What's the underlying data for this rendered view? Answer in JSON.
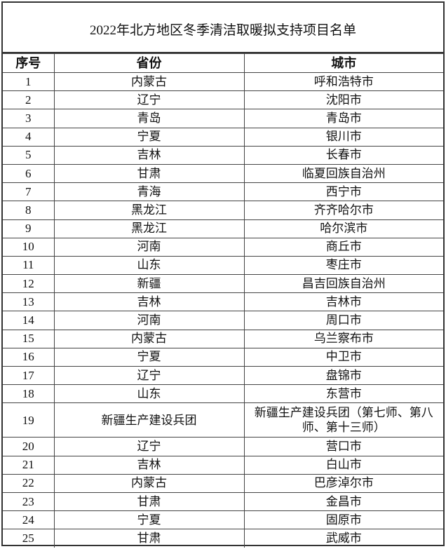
{
  "title": "2022年北方地区冬季清洁取暖拟支持项目名单",
  "headers": {
    "index": "序号",
    "province": "省份",
    "city": "城市"
  },
  "rows": [
    {
      "index": "1",
      "province": "内蒙古",
      "city": "呼和浩特市"
    },
    {
      "index": "2",
      "province": "辽宁",
      "city": "沈阳市"
    },
    {
      "index": "3",
      "province": "青岛",
      "city": "青岛市"
    },
    {
      "index": "4",
      "province": "宁夏",
      "city": "银川市"
    },
    {
      "index": "5",
      "province": "吉林",
      "city": "长春市"
    },
    {
      "index": "6",
      "province": "甘肃",
      "city": "临夏回族自治州"
    },
    {
      "index": "7",
      "province": "青海",
      "city": "西宁市"
    },
    {
      "index": "8",
      "province": "黑龙江",
      "city": "齐齐哈尔市"
    },
    {
      "index": "9",
      "province": "黑龙江",
      "city": "哈尔滨市"
    },
    {
      "index": "10",
      "province": "河南",
      "city": "商丘市"
    },
    {
      "index": "11",
      "province": "山东",
      "city": "枣庄市"
    },
    {
      "index": "12",
      "province": "新疆",
      "city": "昌吉回族自治州"
    },
    {
      "index": "13",
      "province": "吉林",
      "city": "吉林市"
    },
    {
      "index": "14",
      "province": "河南",
      "city": "周口市"
    },
    {
      "index": "15",
      "province": "内蒙古",
      "city": "乌兰察布市"
    },
    {
      "index": "16",
      "province": "宁夏",
      "city": "中卫市"
    },
    {
      "index": "17",
      "province": "辽宁",
      "city": "盘锦市"
    },
    {
      "index": "18",
      "province": "山东",
      "city": "东营市"
    },
    {
      "index": "19",
      "province": "新疆生产建设兵团",
      "city": "新疆生产建设兵团（第七师、第八师、第十三师）"
    },
    {
      "index": "20",
      "province": "辽宁",
      "city": "营口市"
    },
    {
      "index": "21",
      "province": "吉林",
      "city": "白山市"
    },
    {
      "index": "22",
      "province": "内蒙古",
      "city": "巴彦淖尔市"
    },
    {
      "index": "23",
      "province": "甘肃",
      "city": "金昌市"
    },
    {
      "index": "24",
      "province": "宁夏",
      "city": "固原市"
    },
    {
      "index": "25",
      "province": "甘肃",
      "city": "武威市"
    }
  ]
}
